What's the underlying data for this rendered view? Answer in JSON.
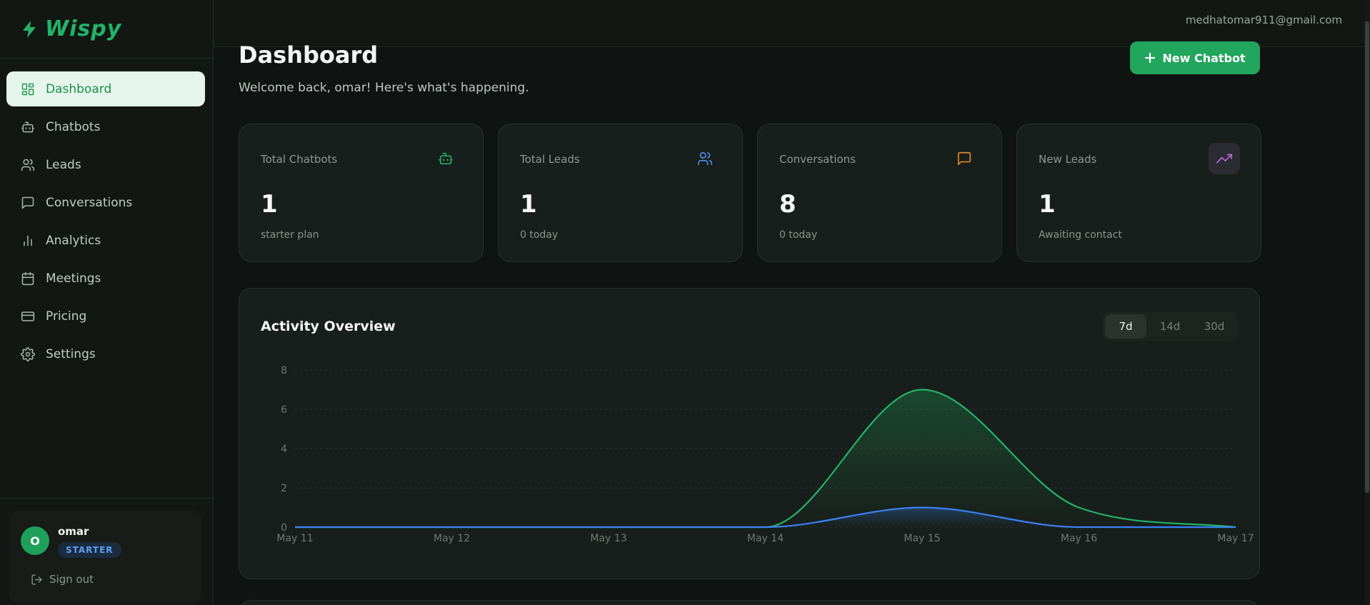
{
  "brand": {
    "name": "Wispy"
  },
  "sidebar": {
    "items": [
      {
        "label": "Dashboard",
        "icon": "dashboard-icon",
        "active": true
      },
      {
        "label": "Chatbots",
        "icon": "bot-icon"
      },
      {
        "label": "Leads",
        "icon": "users-icon"
      },
      {
        "label": "Conversations",
        "icon": "message-icon"
      },
      {
        "label": "Analytics",
        "icon": "bar-chart-icon"
      },
      {
        "label": "Meetings",
        "icon": "calendar-icon"
      },
      {
        "label": "Pricing",
        "icon": "credit-card-icon"
      },
      {
        "label": "Settings",
        "icon": "gear-icon"
      }
    ],
    "user": {
      "initial": "O",
      "name": "omar",
      "plan": "STARTER",
      "signout_label": "Sign out"
    }
  },
  "header": {
    "email": "medhatomar911@gmail.com"
  },
  "page": {
    "title": "Dashboard",
    "subtitle": "Welcome back, omar! Here's what's happening.",
    "new_button_label": "New Chatbot"
  },
  "stats": [
    {
      "label": "Total Chatbots",
      "value": "1",
      "sub": "starter plan",
      "icon": "bot-icon",
      "color": "#22b466"
    },
    {
      "label": "Total Leads",
      "value": "1",
      "sub": "0 today",
      "icon": "users-icon",
      "color": "#4a8ff0"
    },
    {
      "label": "Conversations",
      "value": "8",
      "sub": "0 today",
      "icon": "message-icon",
      "color": "#e08a2c"
    },
    {
      "label": "New Leads",
      "value": "1",
      "sub": "Awaiting contact",
      "icon": "trending-up-icon",
      "color": "#c06ae0"
    }
  ],
  "activity": {
    "title": "Activity Overview",
    "ranges": [
      "7d",
      "14d",
      "30d"
    ],
    "active_range": "7d"
  },
  "chart_data": {
    "type": "area",
    "x": [
      "May 11",
      "May 12",
      "May 13",
      "May 14",
      "May 15",
      "May 16",
      "May 17"
    ],
    "ylim": [
      0,
      8
    ],
    "yticks": [
      0,
      2,
      4,
      6,
      8
    ],
    "grid": true,
    "series": [
      {
        "values": [
          0,
          0,
          0,
          0,
          7,
          1,
          0
        ],
        "color": "#22b466"
      },
      {
        "values": [
          0,
          0,
          0,
          0,
          1,
          0,
          0
        ],
        "color": "#3b82f6"
      }
    ]
  },
  "colors": {
    "accent": "#22a55d",
    "background": "#0f1311"
  }
}
